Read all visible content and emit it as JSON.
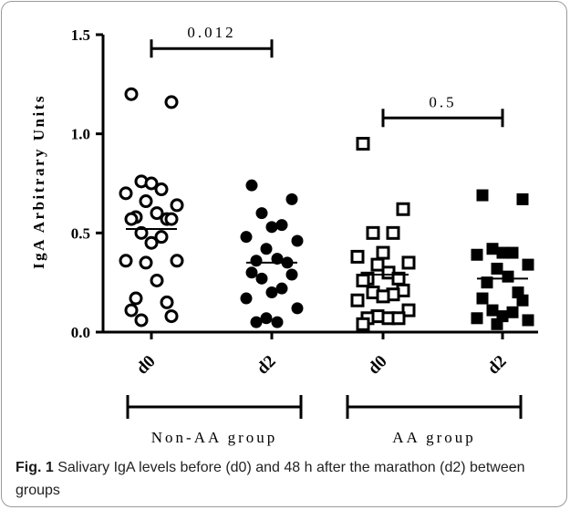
{
  "chart_data": {
    "type": "scatter",
    "ylabel": "IgA Arbitrary Units",
    "ylim": [
      0,
      1.5
    ],
    "yticks": [
      "0.0",
      "0.5",
      "1.0",
      "1.5"
    ],
    "categories": [
      "d0",
      "d2",
      "d0",
      "d2"
    ],
    "groups": [
      {
        "name": "Non-AA group",
        "categories": [
          0,
          1
        ]
      },
      {
        "name": "AA group",
        "categories": [
          2,
          3
        ]
      }
    ],
    "series": [
      {
        "category": "d0",
        "marker": "circle-open",
        "mean": 0.52,
        "values": [
          1.2,
          1.16,
          0.76,
          0.72,
          0.75,
          0.7,
          0.64,
          0.66,
          0.6,
          0.58,
          0.57,
          0.57,
          0.57,
          0.5,
          0.48,
          0.45,
          0.36,
          0.36,
          0.35,
          0.26,
          0.17,
          0.15,
          0.11,
          0.08,
          0.06
        ]
      },
      {
        "category": "d2",
        "marker": "circle-filled",
        "mean": 0.35,
        "values": [
          0.74,
          0.67,
          0.6,
          0.54,
          0.53,
          0.48,
          0.46,
          0.42,
          0.37,
          0.36,
          0.35,
          0.3,
          0.29,
          0.27,
          0.22,
          0.2,
          0.17,
          0.12,
          0.07,
          0.05,
          0.05
        ]
      },
      {
        "category": "d0",
        "marker": "square-open",
        "mean": 0.29,
        "values": [
          0.95,
          0.62,
          0.5,
          0.5,
          0.4,
          0.38,
          0.35,
          0.34,
          0.3,
          0.27,
          0.27,
          0.26,
          0.21,
          0.2,
          0.19,
          0.18,
          0.16,
          0.11,
          0.08,
          0.07,
          0.07,
          0.07,
          0.04
        ]
      },
      {
        "category": "d2",
        "marker": "square-filled",
        "mean": 0.27,
        "values": [
          0.69,
          0.67,
          0.42,
          0.4,
          0.4,
          0.39,
          0.34,
          0.32,
          0.28,
          0.25,
          0.2,
          0.17,
          0.16,
          0.11,
          0.1,
          0.08,
          0.07,
          0.06,
          0.04
        ]
      }
    ],
    "annotations": [
      {
        "text": "0.012",
        "between": [
          0,
          1
        ],
        "y": 1.43
      },
      {
        "text": "0.5",
        "between": [
          2,
          3
        ],
        "y": 1.08
      }
    ]
  },
  "caption": {
    "label": "Fig. 1",
    "text": " Salivary IgA levels before (d0) and 48 h after the marathon (d2) between groups"
  },
  "colors": {
    "ink": "#000000",
    "frame": "#9a9a9a"
  }
}
